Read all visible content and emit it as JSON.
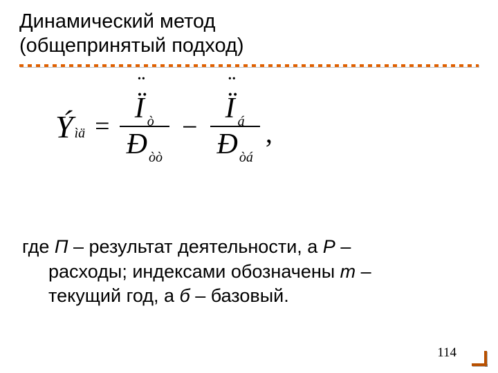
{
  "colors": {
    "background": "#ffffff",
    "text": "#000000",
    "accent": "#e06000",
    "corner": "#b85000"
  },
  "title": {
    "line1": "Динамический метод",
    "line2": "(общепринятый подход)",
    "fontsize": 29,
    "underline_dash": 6,
    "underline_gap": 6,
    "underline_height": 4
  },
  "formula": {
    "lhs_var": "Ý",
    "lhs_sub": "ìä",
    "eq": "=",
    "frac1": {
      "num_var": "Ï",
      "num_sub": "ò",
      "den_var": "Ð",
      "den_sub": "òò"
    },
    "minus": "−",
    "frac2": {
      "num_var": "Ï",
      "num_sub": "á",
      "den_var": "Ð",
      "den_sub": "òá"
    },
    "trailing": ","
  },
  "body": {
    "l1a": "где ",
    "l1_it1": "П",
    "l1b": " – результат деятельности, а ",
    "l1_it2": "Р",
    "l1c": " –",
    "l2a": "расходы; индексами обозначены ",
    "l2_it1": "т",
    "l2b": " –",
    "l3a": "текущий год, а ",
    "l3_it1": "б",
    "l3b": " – базовый.",
    "fontsize": 27
  },
  "page_number": "114"
}
